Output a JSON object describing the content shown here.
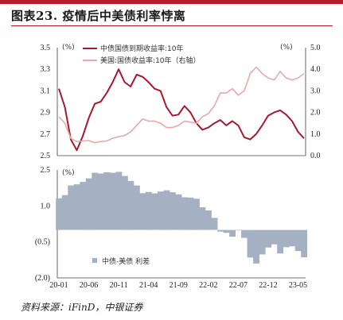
{
  "header": {
    "title": "图表23. 疫情后中美债利率悖离"
  },
  "footer": {
    "source": "资料来源：iFinD，中银证券"
  },
  "chart_data": [
    {
      "type": "line",
      "unit_left": "(%)",
      "unit_right": "(%)",
      "y_left": {
        "ylim": [
          2.5,
          3.5
        ],
        "ticks": [
          "3.5",
          "3.3",
          "3.1",
          "2.9",
          "2.7",
          "2.5"
        ]
      },
      "y_right": {
        "ylim": [
          0.0,
          5.0
        ],
        "ticks": [
          "5.0",
          "4.0",
          "3.0",
          "2.0",
          "1.0",
          "0.0"
        ]
      },
      "series": [
        {
          "name": "中债国债到期收益率:10年",
          "axis": "left",
          "color": "#a8192e",
          "x": [
            "2020-01",
            "2020-02",
            "2020-03",
            "2020-04",
            "2020-05",
            "2020-06",
            "2020-07",
            "2020-08",
            "2020-09",
            "2020-10",
            "2020-11",
            "2020-12",
            "2021-01",
            "2021-02",
            "2021-03",
            "2021-04",
            "2021-05",
            "2021-06",
            "2021-07",
            "2021-08",
            "2021-09",
            "2021-10",
            "2021-11",
            "2021-12",
            "2022-01",
            "2022-02",
            "2022-03",
            "2022-04",
            "2022-05",
            "2022-06",
            "2022-07",
            "2022-08",
            "2022-09",
            "2022-10",
            "2022-11",
            "2022-12",
            "2023-01",
            "2023-02",
            "2023-03",
            "2023-04",
            "2023-05",
            "2023-06"
          ],
          "values": [
            3.12,
            2.95,
            2.65,
            2.55,
            2.68,
            2.85,
            2.98,
            3.0,
            3.08,
            3.18,
            3.3,
            3.18,
            3.14,
            3.25,
            3.23,
            3.18,
            3.12,
            3.1,
            2.95,
            2.87,
            2.88,
            2.96,
            2.9,
            2.8,
            2.74,
            2.76,
            2.8,
            2.83,
            2.78,
            2.82,
            2.78,
            2.67,
            2.65,
            2.7,
            2.78,
            2.87,
            2.9,
            2.92,
            2.88,
            2.82,
            2.72,
            2.66
          ]
        },
        {
          "name": "美国:国债收益率:10年（右轴）",
          "axis": "right",
          "color": "#e8a9a8",
          "x": [
            "2020-01",
            "2020-02",
            "2020-03",
            "2020-04",
            "2020-05",
            "2020-06",
            "2020-07",
            "2020-08",
            "2020-09",
            "2020-10",
            "2020-11",
            "2020-12",
            "2021-01",
            "2021-02",
            "2021-03",
            "2021-04",
            "2021-05",
            "2021-06",
            "2021-07",
            "2021-08",
            "2021-09",
            "2021-10",
            "2021-11",
            "2021-12",
            "2022-01",
            "2022-02",
            "2022-03",
            "2022-04",
            "2022-05",
            "2022-06",
            "2022-07",
            "2022-08",
            "2022-09",
            "2022-10",
            "2022-11",
            "2022-12",
            "2023-01",
            "2023-02",
            "2023-03",
            "2023-04",
            "2023-05",
            "2023-06"
          ],
          "values": [
            1.8,
            1.5,
            0.8,
            0.65,
            0.68,
            0.7,
            0.6,
            0.65,
            0.68,
            0.8,
            0.88,
            0.93,
            1.1,
            1.4,
            1.7,
            1.6,
            1.6,
            1.5,
            1.3,
            1.3,
            1.4,
            1.6,
            1.55,
            1.5,
            1.8,
            1.95,
            2.3,
            2.9,
            2.9,
            3.1,
            2.8,
            3.0,
            3.8,
            4.1,
            3.8,
            3.6,
            3.5,
            3.9,
            3.6,
            3.5,
            3.6,
            3.8
          ]
        }
      ]
    },
    {
      "type": "area",
      "unit": "(%)",
      "ylim": [
        -2.0,
        2.5
      ],
      "ticks": [
        "2.5",
        "1.0",
        "(0.5)",
        "(2.0)"
      ],
      "series": [
        {
          "name": "中债-美债 利差",
          "color": "#a5b1c2",
          "x": [
            "2020-01",
            "2020-02",
            "2020-03",
            "2020-04",
            "2020-05",
            "2020-06",
            "2020-07",
            "2020-08",
            "2020-09",
            "2020-10",
            "2020-11",
            "2020-12",
            "2021-01",
            "2021-02",
            "2021-03",
            "2021-04",
            "2021-05",
            "2021-06",
            "2021-07",
            "2021-08",
            "2021-09",
            "2021-10",
            "2021-11",
            "2021-12",
            "2022-01",
            "2022-02",
            "2022-03",
            "2022-04",
            "2022-05",
            "2022-06",
            "2022-07",
            "2022-08",
            "2022-09",
            "2022-10",
            "2022-11",
            "2022-12",
            "2023-01",
            "2023-02",
            "2023-03",
            "2023-04",
            "2023-05",
            "2023-06"
          ],
          "values": [
            1.32,
            1.45,
            1.85,
            1.9,
            2.0,
            2.15,
            2.38,
            2.35,
            2.4,
            2.38,
            2.42,
            2.25,
            2.04,
            1.85,
            1.53,
            1.58,
            1.52,
            1.6,
            1.65,
            1.57,
            1.48,
            1.36,
            1.35,
            1.3,
            0.94,
            0.81,
            0.5,
            -0.07,
            -0.12,
            -0.28,
            -0.02,
            -0.33,
            -1.15,
            -1.4,
            -1.02,
            -0.73,
            -0.6,
            -0.98,
            -0.72,
            -0.68,
            -0.88,
            -1.14
          ]
        }
      ],
      "x_ticks": [
        "20-01",
        "20-06",
        "20-11",
        "21-04",
        "21-09",
        "22-02",
        "22-07",
        "22-12",
        "23-05"
      ]
    }
  ]
}
